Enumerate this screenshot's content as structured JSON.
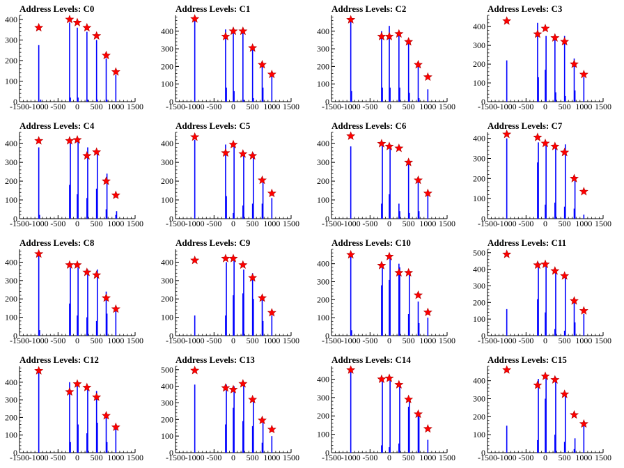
{
  "figure": {
    "x_ticks": [
      "-1500",
      "-1000",
      "-500",
      "0",
      "500",
      "1000",
      "1500"
    ],
    "x_tick_values": [
      -1500,
      -1000,
      -500,
      0,
      500,
      1000,
      1500
    ],
    "xlim": [
      -1500,
      1500
    ],
    "colors": {
      "histogram": "#0000ff",
      "marker": "#ff0000",
      "axes": "#000000"
    }
  },
  "chart_data": [
    {
      "type": "bar",
      "title": "Address Levels: C0",
      "ylim": [
        0,
        420
      ],
      "y_ticks": [
        0,
        100,
        200,
        300,
        400
      ],
      "series": [
        {
          "name": "",
          "kind": "bar",
          "x": [
            -1000,
            -950,
            -200,
            -180,
            0,
            20,
            250,
            270,
            500,
            520,
            750,
            770,
            1000
          ],
          "values": [
            275,
            10,
            385,
            20,
            360,
            20,
            340,
            10,
            300,
            10,
            210,
            10,
            130
          ]
        },
        {
          "name": "",
          "kind": "marker",
          "x": [
            -1000,
            -200,
            0,
            250,
            500,
            750,
            1000
          ],
          "values": [
            360,
            400,
            385,
            360,
            320,
            225,
            145
          ]
        }
      ]
    },
    {
      "type": "bar",
      "title": "Address Levels: C1",
      "ylim": [
        0,
        490
      ],
      "y_ticks": [
        0,
        100,
        200,
        300,
        400
      ],
      "series": [
        {
          "name": "",
          "kind": "bar",
          "x": [
            -1000,
            -200,
            -180,
            0,
            20,
            250,
            270,
            500,
            520,
            750,
            770,
            1000
          ],
          "values": [
            460,
            410,
            80,
            420,
            60,
            400,
            10,
            310,
            20,
            220,
            80,
            150
          ]
        },
        {
          "name": "",
          "kind": "marker",
          "x": [
            -1000,
            -200,
            0,
            250,
            500,
            750,
            1000
          ],
          "values": [
            470,
            370,
            400,
            400,
            305,
            210,
            155
          ]
        }
      ]
    },
    {
      "type": "bar",
      "title": "Address Levels: C2",
      "ylim": [
        0,
        490
      ],
      "y_ticks": [
        0,
        100,
        200,
        300,
        400
      ],
      "series": [
        {
          "name": "",
          "kind": "bar",
          "x": [
            -1000,
            -980,
            -200,
            -180,
            0,
            20,
            250,
            270,
            500,
            520,
            750,
            770,
            1000
          ],
          "values": [
            460,
            60,
            400,
            80,
            430,
            80,
            400,
            80,
            360,
            50,
            220,
            20,
            70
          ]
        },
        {
          "name": "",
          "kind": "marker",
          "x": [
            -1000,
            -200,
            0,
            250,
            500,
            750,
            1000
          ],
          "values": [
            465,
            370,
            370,
            385,
            340,
            210,
            140
          ]
        }
      ]
    },
    {
      "type": "bar",
      "title": "Address Levels: C3",
      "ylim": [
        0,
        460
      ],
      "y_ticks": [
        0,
        100,
        200,
        300,
        400
      ],
      "series": [
        {
          "name": "",
          "kind": "bar",
          "x": [
            -1000,
            -200,
            -180,
            0,
            20,
            250,
            270,
            500,
            520,
            750,
            770,
            1000
          ],
          "values": [
            220,
            420,
            130,
            170,
            350,
            330,
            50,
            350,
            30,
            230,
            60,
            130
          ]
        },
        {
          "name": "",
          "kind": "marker",
          "x": [
            -1000,
            -200,
            0,
            250,
            500,
            750,
            1000
          ],
          "values": [
            430,
            360,
            390,
            340,
            320,
            200,
            145
          ]
        }
      ]
    },
    {
      "type": "bar",
      "title": "Address Levels: C4",
      "ylim": [
        0,
        460
      ],
      "y_ticks": [
        0,
        100,
        200,
        300,
        400
      ],
      "series": [
        {
          "name": "",
          "kind": "bar",
          "x": [
            -1000,
            -980,
            -200,
            -180,
            0,
            20,
            250,
            270,
            500,
            520,
            750,
            770,
            1000,
            1020
          ],
          "values": [
            380,
            20,
            180,
            410,
            130,
            420,
            110,
            380,
            160,
            350,
            50,
            240,
            20,
            40
          ]
        },
        {
          "name": "",
          "kind": "marker",
          "x": [
            -1000,
            -200,
            0,
            250,
            500,
            750,
            1000
          ],
          "values": [
            415,
            415,
            420,
            335,
            355,
            200,
            125
          ]
        }
      ]
    },
    {
      "type": "bar",
      "title": "Address Levels: C5",
      "ylim": [
        0,
        460
      ],
      "y_ticks": [
        0,
        100,
        200,
        300,
        400
      ],
      "series": [
        {
          "name": "",
          "kind": "bar",
          "x": [
            -1000,
            -200,
            -180,
            0,
            20,
            250,
            270,
            500,
            520,
            750,
            770,
            1000
          ],
          "values": [
            420,
            395,
            120,
            30,
            400,
            70,
            350,
            80,
            350,
            80,
            200,
            110
          ]
        },
        {
          "name": "",
          "kind": "marker",
          "x": [
            -1000,
            -200,
            0,
            250,
            500,
            750,
            1000
          ],
          "values": [
            435,
            350,
            395,
            345,
            335,
            205,
            135
          ]
        }
      ]
    },
    {
      "type": "bar",
      "title": "Address Levels: C6",
      "ylim": [
        0,
        460
      ],
      "y_ticks": [
        0,
        100,
        200,
        300,
        400
      ],
      "series": [
        {
          "name": "",
          "kind": "bar",
          "x": [
            -1000,
            -200,
            -180,
            0,
            20,
            250,
            270,
            500,
            520,
            750,
            770,
            1000
          ],
          "values": [
            385,
            80,
            390,
            130,
            385,
            80,
            40,
            310,
            30,
            200,
            40,
            140
          ]
        },
        {
          "name": "",
          "kind": "marker",
          "x": [
            -1000,
            -200,
            0,
            250,
            500,
            750,
            1000
          ],
          "values": [
            440,
            400,
            385,
            375,
            300,
            205,
            135
          ]
        }
      ]
    },
    {
      "type": "bar",
      "title": "Address Levels: C7",
      "ylim": [
        0,
        430
      ],
      "y_ticks": [
        0,
        100,
        200,
        300,
        400
      ],
      "series": [
        {
          "name": "",
          "kind": "bar",
          "x": [
            -1000,
            -200,
            -180,
            0,
            20,
            250,
            270,
            500,
            520,
            750,
            770,
            1000
          ],
          "values": [
            400,
            280,
            380,
            70,
            370,
            80,
            360,
            60,
            370,
            50,
            210,
            20
          ]
        },
        {
          "name": "",
          "kind": "marker",
          "x": [
            -1000,
            -200,
            0,
            250,
            500,
            750,
            1000
          ],
          "values": [
            420,
            405,
            375,
            360,
            330,
            200,
            135
          ]
        }
      ]
    },
    {
      "type": "bar",
      "title": "Address Levels: C8",
      "ylim": [
        0,
        470
      ],
      "y_ticks": [
        0,
        100,
        200,
        300,
        400
      ],
      "series": [
        {
          "name": "",
          "kind": "bar",
          "x": [
            -1000,
            -980,
            -200,
            -180,
            0,
            20,
            250,
            270,
            500,
            520,
            750,
            770,
            1000
          ],
          "values": [
            440,
            30,
            175,
            370,
            110,
            370,
            100,
            360,
            80,
            360,
            240,
            120,
            140
          ]
        },
        {
          "name": "",
          "kind": "marker",
          "x": [
            -1000,
            -200,
            0,
            250,
            500,
            750,
            1000
          ],
          "values": [
            445,
            385,
            385,
            345,
            330,
            205,
            145
          ]
        }
      ]
    },
    {
      "type": "bar",
      "title": "Address Levels: C9",
      "ylim": [
        0,
        470
      ],
      "y_ticks": [
        0,
        100,
        200,
        300,
        400
      ],
      "series": [
        {
          "name": "",
          "kind": "bar",
          "x": [
            -1000,
            -200,
            -180,
            0,
            20,
            250,
            270,
            500,
            520,
            750,
            770,
            1000
          ],
          "values": [
            110,
            110,
            400,
            220,
            420,
            230,
            360,
            340,
            200,
            210,
            80,
            110
          ]
        },
        {
          "name": "",
          "kind": "marker",
          "x": [
            -1000,
            -200,
            0,
            250,
            500,
            750,
            1000
          ],
          "values": [
            410,
            420,
            420,
            385,
            315,
            205,
            125
          ]
        }
      ]
    },
    {
      "type": "bar",
      "title": "Address Levels: C10",
      "ylim": [
        0,
        480
      ],
      "y_ticks": [
        0,
        100,
        200,
        300,
        400
      ],
      "series": [
        {
          "name": "",
          "kind": "bar",
          "x": [
            -1000,
            -980,
            -200,
            -180,
            0,
            20,
            250,
            270,
            500,
            520,
            750,
            770,
            1000
          ],
          "values": [
            450,
            30,
            280,
            400,
            310,
            430,
            400,
            380,
            120,
            340,
            190,
            70,
            100
          ]
        },
        {
          "name": "",
          "kind": "marker",
          "x": [
            -1000,
            -200,
            0,
            250,
            500,
            750,
            1000
          ],
          "values": [
            450,
            390,
            440,
            350,
            350,
            225,
            130
          ]
        }
      ]
    },
    {
      "type": "bar",
      "title": "Address Levels: C11",
      "ylim": [
        0,
        520
      ],
      "y_ticks": [
        0,
        100,
        200,
        300,
        400,
        500
      ],
      "series": [
        {
          "name": "",
          "kind": "bar",
          "x": [
            -1000,
            -200,
            -180,
            0,
            20,
            250,
            270,
            500,
            520,
            750,
            770,
            1000
          ],
          "values": [
            160,
            220,
            440,
            140,
            430,
            40,
            400,
            30,
            360,
            200,
            80,
            130
          ]
        },
        {
          "name": "",
          "kind": "marker",
          "x": [
            -1000,
            -200,
            0,
            250,
            500,
            750,
            1000
          ],
          "values": [
            490,
            425,
            430,
            390,
            360,
            210,
            150
          ]
        }
      ]
    },
    {
      "type": "bar",
      "title": "Address Levels: C12",
      "ylim": [
        0,
        490
      ],
      "y_ticks": [
        0,
        100,
        200,
        300,
        400
      ],
      "series": [
        {
          "name": "",
          "kind": "bar",
          "x": [
            -1000,
            -200,
            -180,
            0,
            20,
            250,
            270,
            500,
            520,
            750,
            770,
            1000
          ],
          "values": [
            470,
            400,
            60,
            390,
            160,
            110,
            380,
            350,
            170,
            220,
            60,
            150
          ]
        },
        {
          "name": "",
          "kind": "marker",
          "x": [
            -1000,
            -200,
            0,
            250,
            500,
            750,
            1000
          ],
          "values": [
            465,
            345,
            390,
            370,
            315,
            210,
            145
          ]
        }
      ]
    },
    {
      "type": "bar",
      "title": "Address Levels: C13",
      "ylim": [
        0,
        520
      ],
      "y_ticks": [
        0,
        100,
        200,
        300,
        400,
        500
      ],
      "series": [
        {
          "name": "",
          "kind": "bar",
          "x": [
            -1000,
            -200,
            -180,
            0,
            20,
            250,
            270,
            500,
            520,
            750,
            770,
            1000
          ],
          "values": [
            410,
            170,
            410,
            270,
            400,
            190,
            420,
            160,
            330,
            60,
            200,
            100
          ]
        },
        {
          "name": "",
          "kind": "marker",
          "x": [
            -1000,
            -200,
            0,
            250,
            500,
            750,
            1000
          ],
          "values": [
            495,
            390,
            380,
            415,
            320,
            195,
            140
          ]
        }
      ]
    },
    {
      "type": "bar",
      "title": "Address Levels: C14",
      "ylim": [
        0,
        470
      ],
      "y_ticks": [
        0,
        100,
        200,
        300,
        400
      ],
      "series": [
        {
          "name": "",
          "kind": "bar",
          "x": [
            -1000,
            -200,
            -180,
            0,
            20,
            250,
            270,
            500,
            520,
            750,
            770,
            1000
          ],
          "values": [
            450,
            40,
            410,
            30,
            410,
            50,
            370,
            250,
            300,
            200,
            200,
            70
          ]
        },
        {
          "name": "",
          "kind": "marker",
          "x": [
            -1000,
            -200,
            0,
            250,
            500,
            750,
            1000
          ],
          "values": [
            450,
            400,
            405,
            370,
            290,
            210,
            130
          ]
        }
      ]
    },
    {
      "type": "bar",
      "title": "Address Levels: C15",
      "ylim": [
        0,
        480
      ],
      "y_ticks": [
        0,
        100,
        200,
        300,
        400
      ],
      "series": [
        {
          "name": "",
          "kind": "bar",
          "x": [
            -1000,
            -200,
            -180,
            0,
            20,
            250,
            270,
            500,
            520,
            750,
            770,
            1000
          ],
          "values": [
            150,
            70,
            410,
            300,
            430,
            100,
            420,
            60,
            320,
            20,
            80,
            150
          ]
        },
        {
          "name": "",
          "kind": "marker",
          "x": [
            -1000,
            -200,
            0,
            250,
            500,
            750,
            1000
          ],
          "values": [
            460,
            375,
            425,
            405,
            325,
            210,
            160
          ]
        }
      ]
    }
  ]
}
